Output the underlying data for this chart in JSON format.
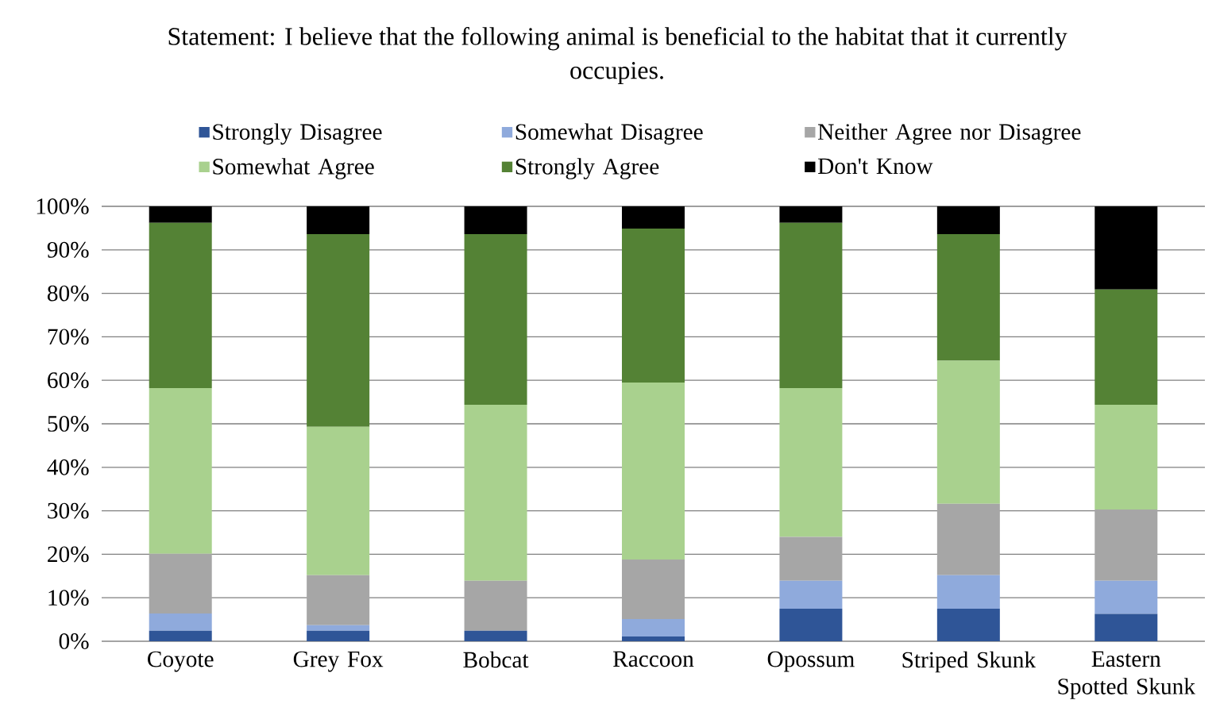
{
  "chart_data": {
    "type": "bar",
    "stacked": true,
    "title": "Statement: I believe that the following animal is beneficial to the habitat that it currently occupies.",
    "categories": [
      "Coyote",
      "Grey Fox",
      "Bobcat",
      "Raccoon",
      "Opossum",
      "Striped Skunk",
      "Eastern Spotted Skunk"
    ],
    "series": [
      {
        "name": "Strongly Disagree",
        "color": "#2f5597",
        "values": [
          2.4,
          2.4,
          2.4,
          1.1,
          7.5,
          7.5,
          6.3
        ]
      },
      {
        "name": "Somewhat Disagree",
        "color": "#8faadc",
        "values": [
          4.0,
          1.3,
          0,
          4.0,
          6.4,
          7.7,
          7.6
        ]
      },
      {
        "name": "Neither Agree nor Disagree",
        "color": "#a6a6a6",
        "values": [
          13.7,
          11.5,
          11.5,
          13.7,
          10.1,
          16.4,
          16.4
        ]
      },
      {
        "name": "Somewhat Agree",
        "color": "#a9d18e",
        "values": [
          38.1,
          34.1,
          40.5,
          40.7,
          34.2,
          32.9,
          24.1
        ]
      },
      {
        "name": "Strongly Agree",
        "color": "#548235",
        "values": [
          38.0,
          44.3,
          39.2,
          35.4,
          38.0,
          29.1,
          26.5
        ]
      },
      {
        "name": "Don't Know",
        "color": "#000000",
        "values": [
          3.8,
          6.4,
          6.4,
          5.1,
          3.8,
          6.4,
          19.1
        ]
      }
    ],
    "ylim": [
      0,
      100
    ],
    "yticks": [
      {
        "value": 0,
        "label": "0%"
      },
      {
        "value": 10,
        "label": "10%"
      },
      {
        "value": 20,
        "label": "20%"
      },
      {
        "value": 30,
        "label": "30%"
      },
      {
        "value": 40,
        "label": "40%"
      },
      {
        "value": 50,
        "label": "50%"
      },
      {
        "value": 60,
        "label": "60%"
      },
      {
        "value": 70,
        "label": "70%"
      },
      {
        "value": 80,
        "label": "80%"
      },
      {
        "value": 90,
        "label": "90%"
      },
      {
        "value": 100,
        "label": "100%"
      }
    ],
    "grid": "y",
    "legend": "top"
  }
}
